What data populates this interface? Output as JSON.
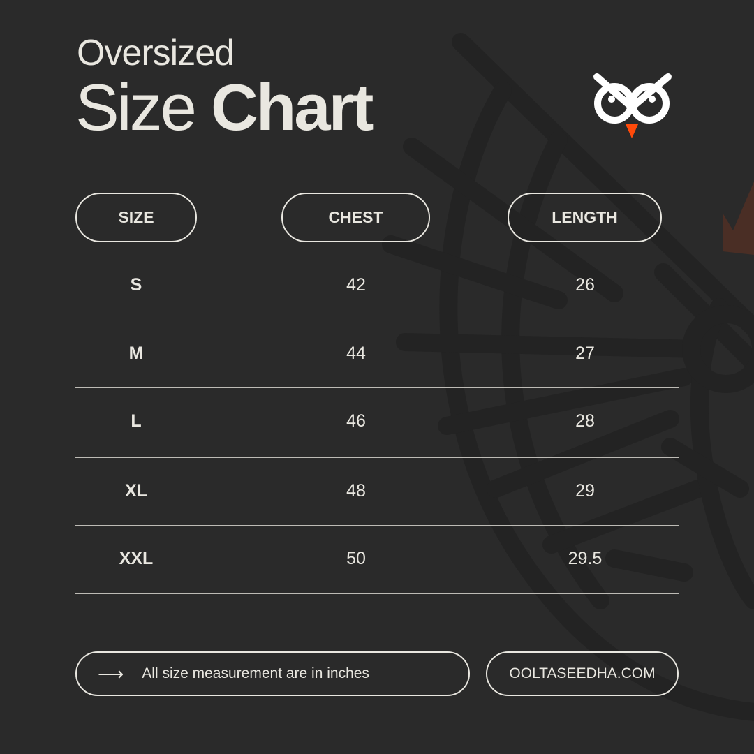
{
  "title": {
    "line1": "Oversized",
    "line2_light": "Size",
    "line2_bold": "Chart"
  },
  "logo": {
    "icon": "owl-logo",
    "beak_color": "#ff4a0a"
  },
  "table": {
    "headers": [
      "SIZE",
      "CHEST",
      "LENGTH"
    ],
    "rows": [
      [
        "S",
        "42",
        "26"
      ],
      [
        "M",
        "44",
        "27"
      ],
      [
        "L",
        "46",
        "28"
      ],
      [
        "XL",
        "48",
        "29"
      ],
      [
        "XXL",
        "50",
        "29.5"
      ]
    ]
  },
  "footer": {
    "note_icon": "arrow-right-icon",
    "note": "All size measurement are in inches",
    "website": "OOLTASEEDHA.COM"
  },
  "colors": {
    "background": "#2a2a2a",
    "text": "#e9e7e0",
    "accent": "#ff4a0a"
  }
}
